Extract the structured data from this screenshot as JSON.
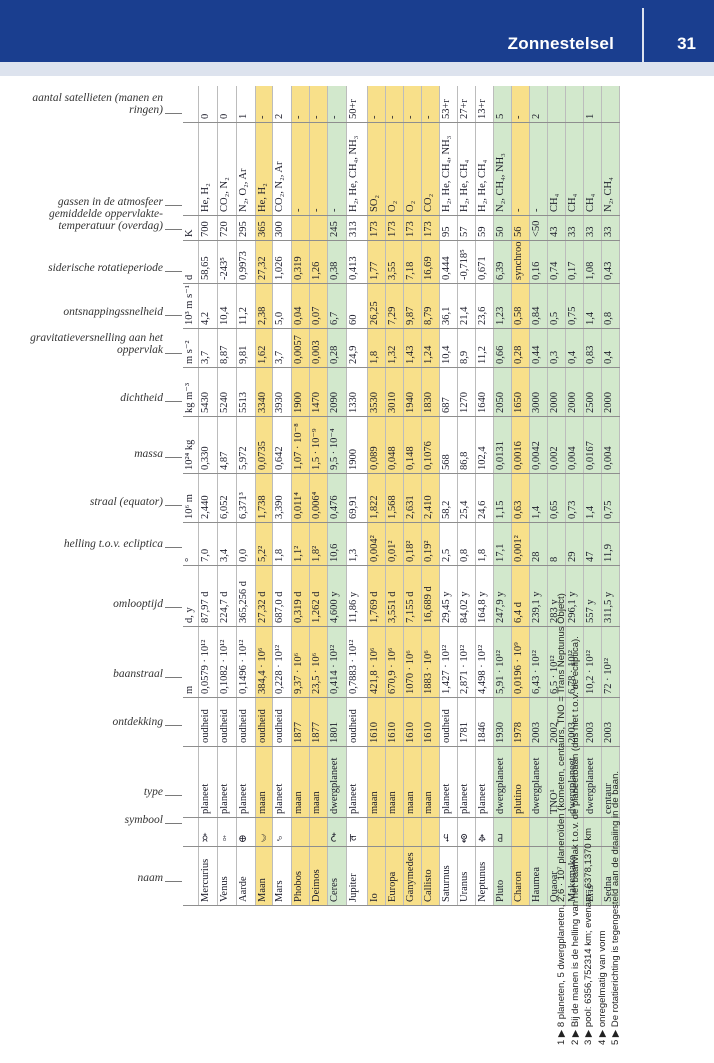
{
  "header": {
    "section_title": "Zonnestelsel",
    "page_number": "31"
  },
  "columns": [
    {
      "key": "naam",
      "label": "naam"
    },
    {
      "key": "symbool",
      "label": "symbool"
    },
    {
      "key": "type",
      "label": "type"
    },
    {
      "key": "ontdekking",
      "label": "ontdekking"
    },
    {
      "key": "baanstraal",
      "label": "baanstraal"
    },
    {
      "key": "omlooptijd",
      "label": "omlooptijd"
    },
    {
      "key": "helling",
      "label": "helling t.o.v. ecliptica"
    },
    {
      "key": "straal",
      "label": "straal (equator)"
    },
    {
      "key": "massa",
      "label": "massa"
    },
    {
      "key": "dichtheid",
      "label": "dichtheid"
    },
    {
      "key": "gravitatie",
      "label": "gravitatieversnelling aan het oppervlak"
    },
    {
      "key": "ontsnapping",
      "label": "ontsnappingssnelheid"
    },
    {
      "key": "rotatie",
      "label": "siderische rotatieperiode"
    },
    {
      "key": "temperatuur",
      "label": "gemiddelde oppervlakte-temperatuur (overdag)"
    },
    {
      "key": "gassen",
      "label": "gassen in de atmosfeer"
    },
    {
      "key": "satellieten",
      "label": "aantal satellieten (manen en ringen)"
    }
  ],
  "units": [
    "",
    "",
    "",
    "",
    "m",
    "d, y",
    "°",
    "10⁶ m",
    "10²⁴ kg",
    "kg m⁻³",
    "m s⁻²",
    "10³ m s⁻¹",
    "d",
    "K",
    "",
    ""
  ],
  "rows": [
    {
      "c": "white",
      "v": [
        "Mercurius",
        "☿",
        "planeet",
        "oudheid",
        "0,0579 · 10¹²",
        "87,97 d",
        "7,0",
        "2,440",
        "0,330",
        "5430",
        "3,7",
        "4,2",
        "58,65",
        "700",
        "He, H₂",
        "0"
      ]
    },
    {
      "c": "white",
      "v": [
        "Venus",
        "♀",
        "planeet",
        "oudheid",
        "0,1082 · 10¹²",
        "224,7 d",
        "3,4",
        "6,052",
        "4,87",
        "5240",
        "8,87",
        "10,4",
        "-243⁵",
        "720",
        "CO₂, N₂",
        "0"
      ]
    },
    {
      "c": "white",
      "v": [
        "Aarde",
        "⊕",
        "planeet",
        "oudheid",
        "0,1496 · 10¹²",
        "365,256 d",
        "0,0",
        "6,371³",
        "5,972",
        "5513",
        "9,81",
        "11,2",
        "0,9973",
        "295",
        "N₂, O₂, Ar",
        "1"
      ]
    },
    {
      "c": "yellow",
      "v": [
        "Maan",
        "☾",
        "maan",
        "oudheid",
        "384,4 · 10⁶",
        "27,32 d",
        "5,2²",
        "1,738",
        "0,0735",
        "3340",
        "1,62",
        "2,38",
        "27,32",
        "365",
        "He, H₂",
        "-"
      ]
    },
    {
      "c": "white",
      "v": [
        "Mars",
        "♂",
        "planeet",
        "oudheid",
        "0,228 · 10¹²",
        "687,0 d",
        "1,8",
        "3,390",
        "0,642",
        "3930",
        "3,7",
        "5,0",
        "1,026",
        "300",
        "CO₂, N₂, Ar",
        "2"
      ]
    },
    {
      "c": "yellow",
      "v": [
        "Phobos",
        "",
        "maan",
        "1877",
        "9,37 · 10⁶",
        "0,319 d",
        "1,1²",
        "0,011⁴",
        "1,07 · 10⁻⁸",
        "1900",
        "0,0057",
        "0,04",
        "0,319",
        "",
        "-",
        "-"
      ]
    },
    {
      "c": "yellow",
      "v": [
        "Deimos",
        "",
        "maan",
        "1877",
        "23,5 · 10⁶",
        "1,262 d",
        "1,8²",
        "0,006⁴",
        "1,5 · 10⁻⁹",
        "1470",
        "0,003",
        "0,07",
        "1,26",
        "",
        "-",
        "-"
      ]
    },
    {
      "c": "green",
      "v": [
        "Ceres",
        "⚳",
        "dwergplaneet",
        "1801",
        "0,414 · 10¹²",
        "4,600 y",
        "10,6",
        "0,476",
        "9,5 · 10⁻⁴",
        "2090",
        "0,28",
        "6,7",
        "0,38",
        "245",
        "-",
        "-"
      ]
    },
    {
      "c": "white",
      "v": [
        "Jupiter",
        "♃",
        "planeet",
        "oudheid",
        "0,7883 · 10¹²",
        "11,86 y",
        "1,3",
        "69,91",
        "1900",
        "1330",
        "24,9",
        "60",
        "0,413",
        "313",
        "H₂, He, CH₄, NH₃",
        "50+r"
      ]
    },
    {
      "c": "yellow",
      "v": [
        "Io",
        "",
        "maan",
        "1610",
        "421,8 · 10⁶",
        "1,769 d",
        "0,004²",
        "1,822",
        "0,089",
        "3530",
        "1,8",
        "26,25",
        "1,77",
        "173",
        "SO₂",
        "-"
      ]
    },
    {
      "c": "yellow",
      "v": [
        "Europa",
        "",
        "maan",
        "1610",
        "670,9 · 10⁶",
        "3,551 d",
        "0,01²",
        "1,568",
        "0,048",
        "3010",
        "1,32",
        "7,29",
        "3,55",
        "173",
        "O₂",
        "-"
      ]
    },
    {
      "c": "yellow",
      "v": [
        "Ganymedes",
        "",
        "maan",
        "1610",
        "1070 · 10⁶",
        "7,155 d",
        "0,18²",
        "2,631",
        "0,148",
        "1940",
        "1,43",
        "9,87",
        "7,18",
        "173",
        "O₂",
        "-"
      ]
    },
    {
      "c": "yellow",
      "v": [
        "Callisto",
        "",
        "maan",
        "1610",
        "1883 · 10⁶",
        "16,689 d",
        "0,19²",
        "2,410",
        "0,1076",
        "1830",
        "1,24",
        "8,79",
        "16,69",
        "173",
        "CO₂",
        "-"
      ]
    },
    {
      "c": "white",
      "v": [
        "Saturnus",
        "♄",
        "planeet",
        "oudheid",
        "1,427 · 10¹²",
        "29,45 y",
        "2,5",
        "58,2",
        "568",
        "687",
        "10,4",
        "36,1",
        "0,444",
        "95",
        "H₂, He, CH₄, NH₃",
        "53+r"
      ]
    },
    {
      "c": "white",
      "v": [
        "Uranus",
        "⛢",
        "planeet",
        "1781",
        "2,871 · 10¹²",
        "84,02 y",
        "0,8",
        "25,4",
        "86,8",
        "1270",
        "8,9",
        "21,4",
        "-0,718⁵",
        "57",
        "H₂, He, CH₄",
        "27+r"
      ]
    },
    {
      "c": "white",
      "v": [
        "Neptunus",
        "♆",
        "planeet",
        "1846",
        "4,498 · 10¹²",
        "164,8 y",
        "1,8",
        "24,6",
        "102,4",
        "1640",
        "11,2",
        "23,6",
        "0,671",
        "59",
        "H₂, He, CH₄",
        "13+r"
      ]
    },
    {
      "c": "green",
      "v": [
        "Pluto",
        "♇",
        "dwergplaneet",
        "1930",
        "5,91 · 10¹²",
        "247,9 y",
        "17,1",
        "1,15",
        "0,0131",
        "2050",
        "0,66",
        "1,23",
        "6,39",
        "50",
        "N₂, CH₄, NH₃",
        "5"
      ]
    },
    {
      "c": "yellow",
      "v": [
        "Charon",
        "",
        "plutino",
        "1978",
        "0,0196 · 10⁹",
        "6,4 d",
        "0,001²",
        "0,63",
        "0,0016",
        "1650",
        "0,28",
        "0,58",
        "synchroon",
        "56",
        "-",
        "-"
      ]
    },
    {
      "c": "green",
      "v": [
        "Haumea",
        "",
        "dwergplaneet",
        "2003",
        "6,43 · 10¹²",
        "239,1 y",
        "28",
        "1,4",
        "0,0042",
        "3000",
        "0,44",
        "0,84",
        "0,16",
        "<50",
        "-",
        "2"
      ]
    },
    {
      "c": "green",
      "v": [
        "Quaoar",
        "",
        "TNO¹",
        "2002",
        "6,5 · 10¹²",
        "283 y",
        "8",
        "0,65",
        "0,002",
        "2000",
        "0,3",
        "0,5",
        "0,74",
        "43",
        "CH₄",
        ""
      ]
    },
    {
      "c": "green",
      "v": [
        "Makemake",
        "",
        "dwergplaneet",
        "2003",
        "6,78 · 10¹²",
        "296,1 y",
        "29",
        "0,73",
        "0,004",
        "2000",
        "0,4",
        "0,75",
        "0,17",
        "33",
        "CH₄",
        ""
      ]
    },
    {
      "c": "green",
      "v": [
        "Eris",
        "",
        "dwergplaneet",
        "2003",
        "10,2 · 10¹²",
        "557 y",
        "47",
        "1,4",
        "0,0167",
        "2500",
        "0,83",
        "1,4",
        "1,08",
        "33",
        "CH₄",
        "1"
      ]
    },
    {
      "c": "green",
      "v": [
        "Sedna",
        "",
        "centaur",
        "2003",
        "72 · 10¹²",
        "311,5 y",
        "11,9",
        "0,75",
        "0,004",
        "2000",
        "0,4",
        "0,8",
        "0,43",
        "33",
        "N₂, CH₄",
        ""
      ]
    }
  ],
  "footnotes": [
    "1 ▶ 8 planeten, 5 dwergplaneten, 2,6 · 10⁷ planeroïden (kometen, centaurs, TNO = Trans Neptunus Object)",
    "2 ▶ Bij de manen is de helling van het baanvlak t.o.v. de planeetbaan (dus niet t.o.v. de ecliptica).",
    "3 ▶ pool: 6356,752314 km; evenaar: 6378,1370 km",
    "4 ▶ onregelmatig van vorm",
    "5 ▶ De rotatierichting is tegengesteld aan de draaiing in de baan."
  ]
}
